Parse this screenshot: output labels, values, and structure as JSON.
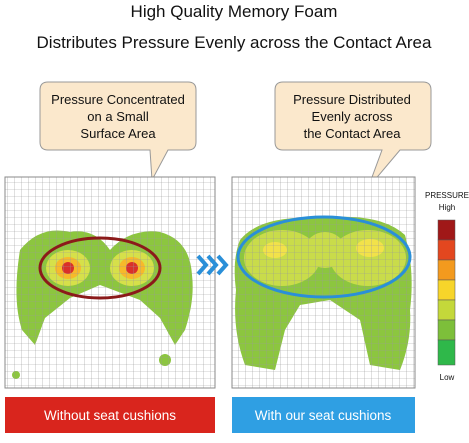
{
  "header": {
    "title": "High Quality Memory Foam",
    "subtitle": "Distributes Pressure Evenly across the Contact Area"
  },
  "panels": [
    {
      "bubble": [
        "Pressure Concentrated",
        "on a Small",
        "Surface Area"
      ],
      "button": "Without seat cushions"
    },
    {
      "bubble": [
        "Pressure Distributed",
        "Evenly across",
        "the Contact Area"
      ],
      "button": "With our seat cushions"
    }
  ],
  "legend": {
    "title": "PRESSURE",
    "high": "High",
    "low": "Low"
  }
}
